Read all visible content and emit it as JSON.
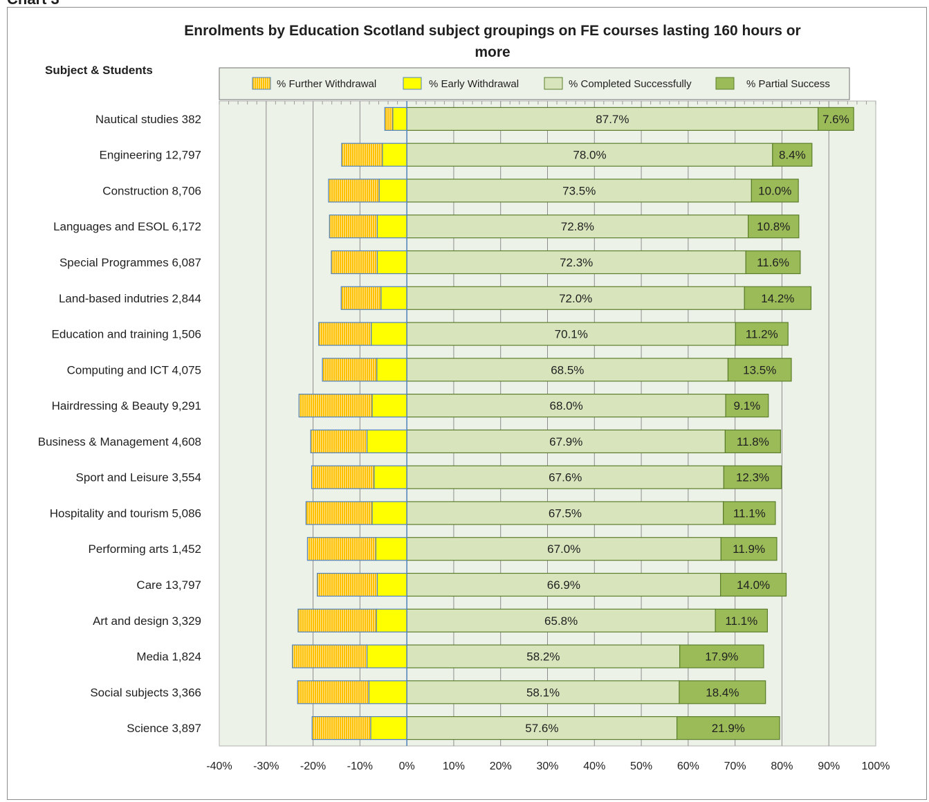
{
  "page": {
    "heading": "Chart 3"
  },
  "chart_data": {
    "type": "bar",
    "orientation": "horizontal",
    "stacked": "diverging",
    "title": "Enrolments by Education Scotland  subject groupings on FE courses lasting 160 hours or more",
    "title_lines": [
      "Enrolments by Education Scotland  subject groupings on FE courses lasting 160 hours or",
      "more"
    ],
    "category_header": "Subject & Students",
    "xlim": [
      -40,
      100
    ],
    "xticks": [
      -40,
      -30,
      -20,
      -10,
      0,
      10,
      20,
      30,
      40,
      50,
      60,
      70,
      80,
      90,
      100
    ],
    "xtick_labels": [
      "-40%",
      "-30%",
      "-20%",
      "-10%",
      "0%",
      "10%",
      "20%",
      "30%",
      "40%",
      "50%",
      "60%",
      "70%",
      "80%",
      "90%",
      "100%"
    ],
    "grid": "vertical major",
    "legend_position": "top",
    "categories": [
      "Nautical studies  382",
      "Engineering  12,797",
      "Construction  8,706",
      "Languages and ESOL  6,172",
      "Special Programmes  6,087",
      "Land-based indutries  2,844",
      "Education and training  1,506",
      "Computing and ICT  4,075",
      "Hairdressing & Beauty  9,291",
      "Business & Management  4,608",
      "Sport and Leisure  3,554",
      "Hospitality and tourism  5,086",
      "Performing arts  1,452",
      "Care  13,797",
      "Art and design  3,329",
      "Media  1,824",
      "Social subjects  3,366",
      "Science  3,897"
    ],
    "series": [
      {
        "name": "% Further Withdrawal",
        "color": "#ffc000",
        "values": [
          -1.7,
          -8.7,
          -10.8,
          -10.2,
          -9.8,
          -8.5,
          -11.2,
          -11.6,
          -15.6,
          -12.0,
          -13.3,
          -14.1,
          -14.6,
          -12.8,
          -16.7,
          -15.9,
          -15.2,
          -12.5
        ]
      },
      {
        "name": "% Early Withdrawal",
        "color": "#ffff00",
        "values": [
          -3.0,
          -5.2,
          -5.9,
          -6.3,
          -6.3,
          -5.5,
          -7.6,
          -6.4,
          -7.4,
          -8.5,
          -7.0,
          -7.4,
          -6.6,
          -6.3,
          -6.5,
          -8.5,
          -8.1,
          -7.7
        ]
      },
      {
        "name": "% Completed Successfully",
        "color": "#d8e4bc",
        "values": [
          87.7,
          78.0,
          73.5,
          72.8,
          72.3,
          72.0,
          70.1,
          68.5,
          68.0,
          67.9,
          67.6,
          67.5,
          67.0,
          66.9,
          65.8,
          58.2,
          58.1,
          57.6
        ]
      },
      {
        "name": "% Partial Success",
        "color": "#9bbb59",
        "values": [
          7.6,
          8.4,
          10.0,
          10.8,
          11.6,
          14.2,
          11.2,
          13.5,
          9.1,
          11.8,
          12.3,
          11.1,
          11.9,
          14.0,
          11.1,
          17.9,
          18.4,
          21.9
        ]
      }
    ],
    "data_labels_completed": [
      "87.7%",
      "78.0%",
      "73.5%",
      "72.8%",
      "72.3%",
      "72.0%",
      "70.1%",
      "68.5%",
      "68.0%",
      "67.9%",
      "67.6%",
      "67.5%",
      "67.0%",
      "66.9%",
      "65.8%",
      "58.2%",
      "58.1%",
      "57.6%"
    ],
    "data_labels_partial": [
      "7.6%",
      "8.4%",
      "10.0%",
      "10.8%",
      "11.6%",
      "14.2%",
      "11.2%",
      "13.5%",
      "9.1%",
      "11.8%",
      "12.3%",
      "11.1%",
      "11.9%",
      "14.0%",
      "11.1%",
      "17.9%",
      "18.4%",
      "21.9%"
    ]
  },
  "colors": {
    "plot_background": "#edf2e8",
    "gridline": "#8c8c8c",
    "bar_outline_negative": "#4f81bd",
    "bar_outline_positive": "#5a7d2a",
    "legend_background": "#edf2e8"
  }
}
